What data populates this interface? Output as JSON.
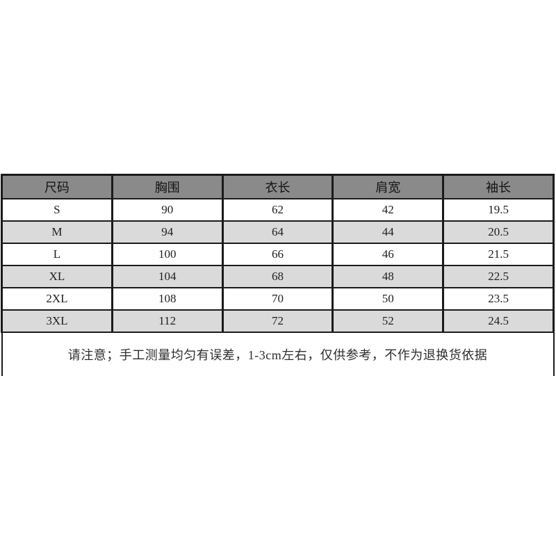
{
  "size_chart": {
    "headers": [
      "尺码",
      "胸围",
      "衣长",
      "肩宽",
      "袖长"
    ],
    "rows": [
      {
        "size": "S",
        "chest": "90",
        "length": "62",
        "shoulder": "42",
        "sleeve": "19.5"
      },
      {
        "size": "M",
        "chest": "94",
        "length": "64",
        "shoulder": "44",
        "sleeve": "20.5"
      },
      {
        "size": "L",
        "chest": "100",
        "length": "66",
        "shoulder": "46",
        "sleeve": "21.5"
      },
      {
        "size": "XL",
        "chest": "104",
        "length": "68",
        "shoulder": "48",
        "sleeve": "22.5"
      },
      {
        "size": "2XL",
        "chest": "108",
        "length": "70",
        "shoulder": "50",
        "sleeve": "23.5"
      },
      {
        "size": "3XL",
        "chest": "112",
        "length": "72",
        "shoulder": "52",
        "sleeve": "24.5"
      }
    ],
    "note": "请注意；手工测量均匀有误差，1-3cm左右，仅供参考，不作为退换货依据"
  },
  "colors": {
    "header_bg": "#8a8a8a",
    "alt_row_bg": "#dadada",
    "border": "#1a1a1a",
    "text": "#1f1f1f",
    "background": "#ffffff"
  },
  "chart_data": {
    "type": "table",
    "columns": [
      "尺码",
      "胸围",
      "衣长",
      "肩宽",
      "袖长"
    ],
    "rows": [
      [
        "S",
        90,
        62,
        42,
        19.5
      ],
      [
        "M",
        94,
        64,
        44,
        20.5
      ],
      [
        "L",
        100,
        66,
        46,
        21.5
      ],
      [
        "XL",
        104,
        68,
        48,
        22.5
      ],
      [
        "2XL",
        108,
        70,
        50,
        23.5
      ],
      [
        "3XL",
        112,
        72,
        52,
        24.5
      ]
    ],
    "note": "请注意；手工测量均匀有误差，1-3cm左右，仅供参考，不作为退换货依据"
  }
}
